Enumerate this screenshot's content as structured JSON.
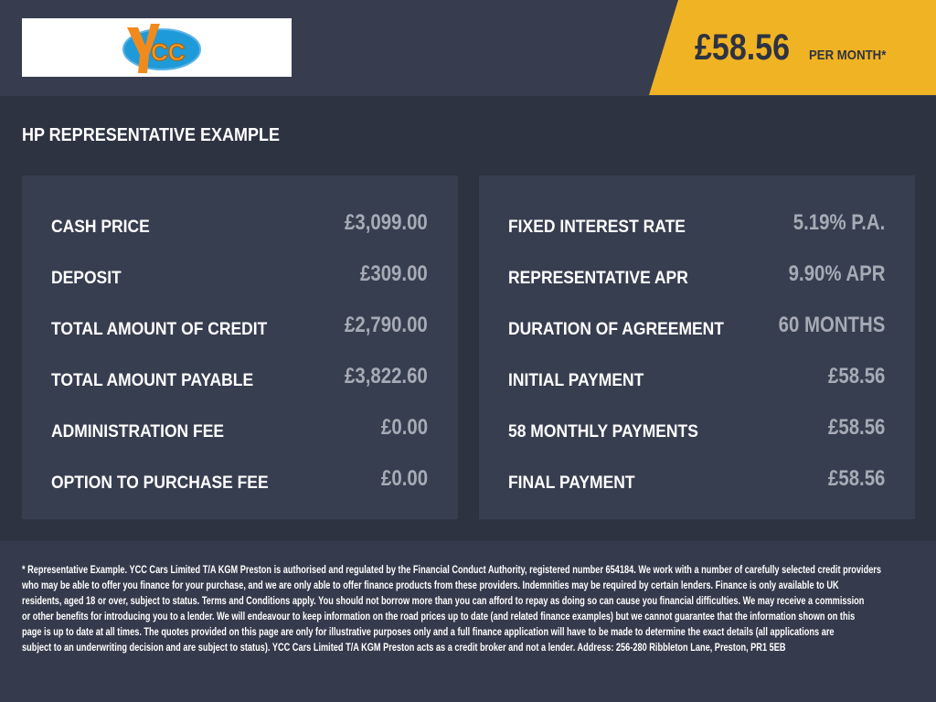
{
  "header": {
    "logo_text": "YCC",
    "price": "£58.56",
    "per_month": "PER MONTH*",
    "accent": "#f0b323"
  },
  "title": "HP REPRESENTATIVE EXAMPLE",
  "left": [
    {
      "label": "CASH PRICE",
      "value": "£3,099.00"
    },
    {
      "label": "DEPOSIT",
      "value": "£309.00"
    },
    {
      "label": "TOTAL AMOUNT OF CREDIT",
      "value": "£2,790.00"
    },
    {
      "label": "TOTAL AMOUNT PAYABLE",
      "value": "£3,822.60"
    },
    {
      "label": "ADMINISTRATION FEE",
      "value": "£0.00"
    },
    {
      "label": "OPTION TO PURCHASE FEE",
      "value": "£0.00"
    }
  ],
  "right": [
    {
      "label": "FIXED INTEREST RATE",
      "value": "5.19% P.A."
    },
    {
      "label": "REPRESENTATIVE APR",
      "value": "9.90% APR"
    },
    {
      "label": "DURATION OF AGREEMENT",
      "value": "60 MONTHS"
    },
    {
      "label": "INITIAL PAYMENT",
      "value": "£58.56"
    },
    {
      "label": "58 MONTHLY PAYMENTS",
      "value": "£58.56"
    },
    {
      "label": "FINAL PAYMENT",
      "value": "£58.56"
    }
  ],
  "footer": [
    "* Representative Example. YCC Cars Limited T/A KGM Preston  is authorised and regulated by the Financial Conduct Authority, registered number 654184. We work with a number of carefully selected credit providers",
    "who may be able to offer you finance for your purchase, and we are only able to offer finance products from these providers. Indemnities may be required by certain lenders. Finance is only available to UK",
    "residents, aged 18 or over, subject to status. Terms and Conditions apply. You should not borrow more than you can afford to repay as doing so can cause you financial difficulties. We may receive a commission",
    "or other benefits for introducing you to a lender. We will endeavour to keep information on the road prices up to date (and related finance examples) but we cannot guarantee that the information shown on this",
    "page is up to date at all times. The quotes provided on this page are only for illustrative purposes only and a full finance application will have to be made to determine the exact details (all applications are",
    "subject to an underwriting decision and are subject to status). YCC Cars Limited T/A KGM Preston  acts as a credit broker and not a lender. Address: 256-280 Ribbleton Lane, Preston, PR1 5EB"
  ]
}
